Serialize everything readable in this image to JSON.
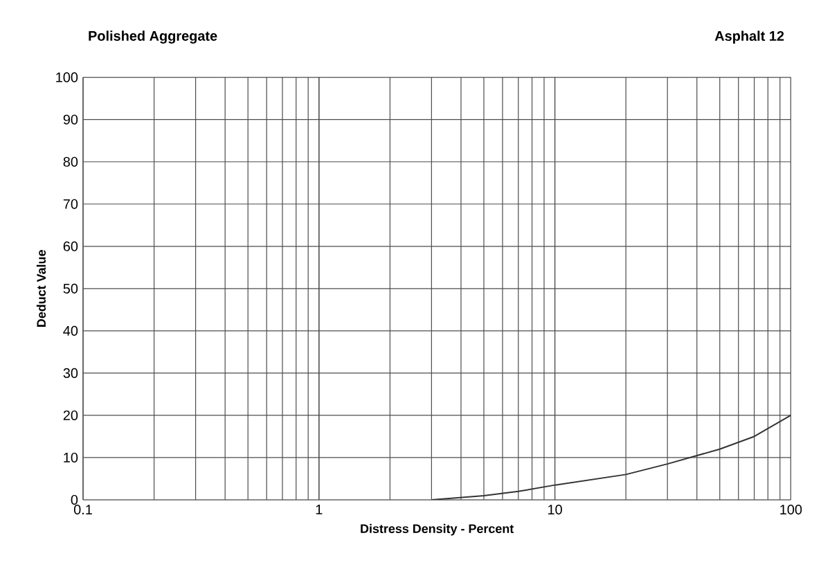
{
  "chart_data": {
    "type": "line",
    "title": "Polished Aggregate",
    "subtitle": "Asphalt 12",
    "xlabel": "Distress Density - Percent",
    "ylabel": "Deduct Value",
    "log": "x",
    "xlim": [
      0.1,
      100
    ],
    "xticks": [
      0.1,
      1,
      10,
      100
    ],
    "ylim": [
      0,
      100
    ],
    "yticks": [
      0,
      10,
      20,
      30,
      40,
      50,
      60,
      70,
      80,
      90,
      100
    ],
    "grid": true,
    "marker": "none",
    "line_style": "solid",
    "series": [
      {
        "color": "#333333",
        "x": [
          3,
          5,
          7,
          10,
          20,
          30,
          50,
          70,
          100
        ],
        "values": [
          0,
          1,
          2,
          3.5,
          6,
          8.5,
          12,
          15,
          20
        ]
      }
    ]
  }
}
